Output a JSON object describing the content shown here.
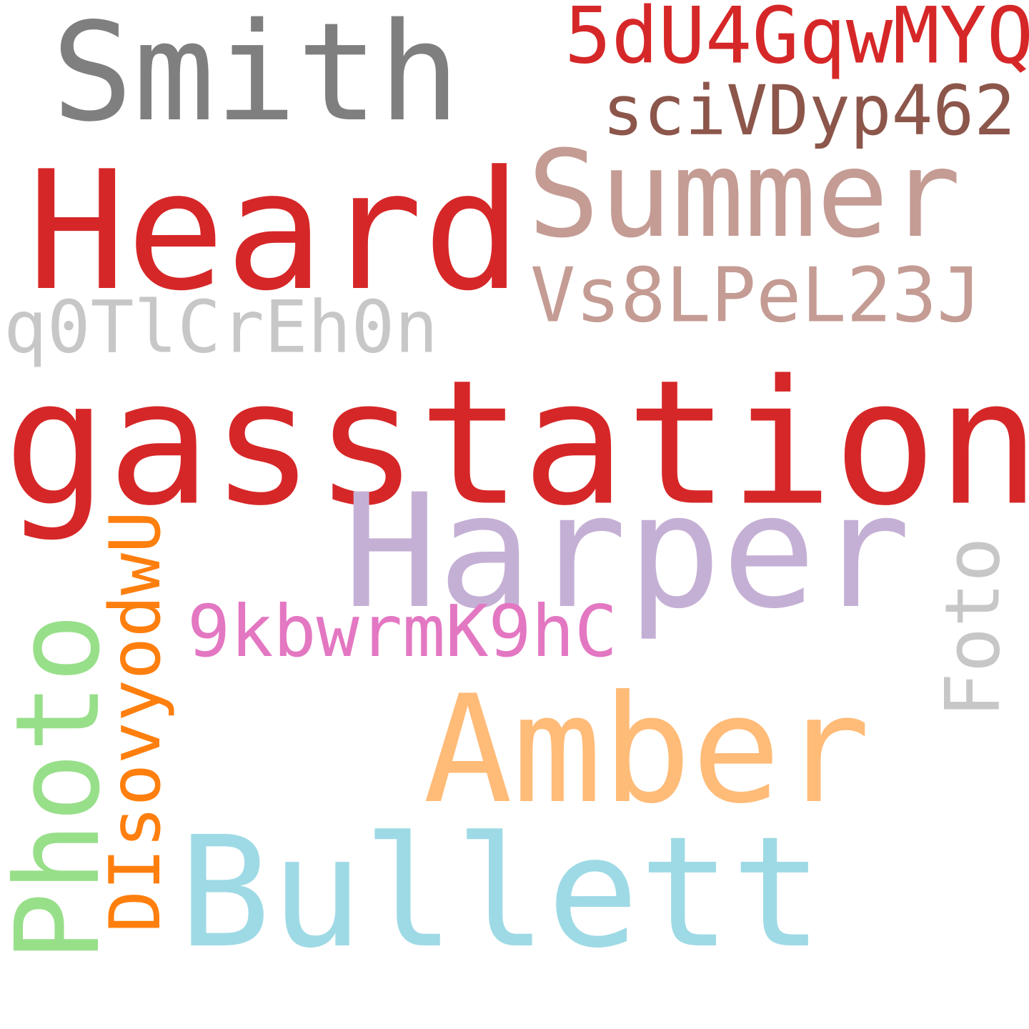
{
  "words": [
    {
      "text": "Smith",
      "color": "#7f7f7f"
    },
    {
      "text": "5dU4GqwMYQ",
      "color": "#d62728"
    },
    {
      "text": "sciVDyp462",
      "color": "#8c564b"
    },
    {
      "text": "Heard",
      "color": "#d62728"
    },
    {
      "text": "Summer",
      "color": "#c49c94"
    },
    {
      "text": "Vs8LPeL23J",
      "color": "#c49c94"
    },
    {
      "text": "q0TlCrEh0n",
      "color": "#c7c7c7"
    },
    {
      "text": "gasstation",
      "color": "#d62728"
    },
    {
      "text": "Harper",
      "color": "#c5b0d5"
    },
    {
      "text": "9kbwrmK9hC",
      "color": "#e377c2"
    },
    {
      "text": "Foto",
      "color": "#c7c7c7"
    },
    {
      "text": "Amber",
      "color": "#ffbb78"
    },
    {
      "text": "Photo",
      "color": "#98df8a"
    },
    {
      "text": "DIsovyodwU",
      "color": "#ff7f0e"
    },
    {
      "text": "Bullett",
      "color": "#9edae5"
    }
  ]
}
